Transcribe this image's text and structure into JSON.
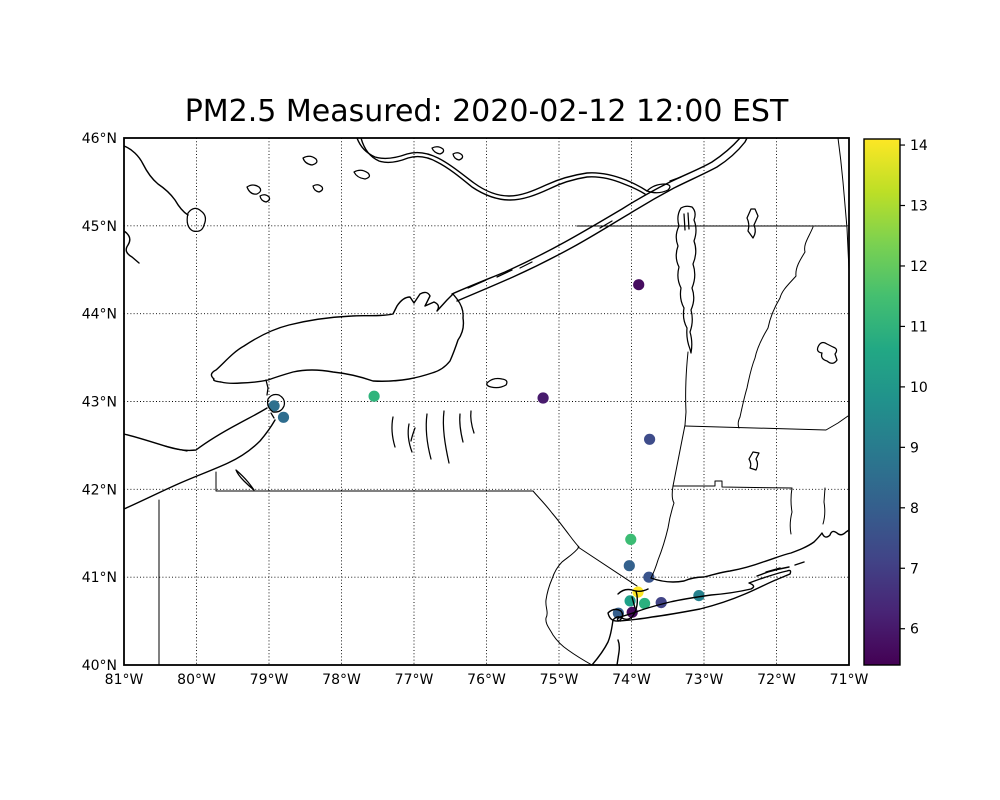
{
  "chart_data": {
    "type": "scatter",
    "subtype": "geographic-scatter-map",
    "title": "PM2.5 Measured: 2020-02-12 12:00 EST",
    "projection": "PlateCarree",
    "region": "New York State / Lake Ontario / New England",
    "grid": "dotted",
    "lon_range": [
      -81,
      -71
    ],
    "lat_range": [
      40,
      46
    ],
    "lon_ticks": [
      {
        "value": -81,
        "label": "81°W"
      },
      {
        "value": -80,
        "label": "80°W"
      },
      {
        "value": -79,
        "label": "79°W"
      },
      {
        "value": -78,
        "label": "78°W"
      },
      {
        "value": -77,
        "label": "77°W"
      },
      {
        "value": -76,
        "label": "76°W"
      },
      {
        "value": -75,
        "label": "75°W"
      },
      {
        "value": -74,
        "label": "74°W"
      },
      {
        "value": -73,
        "label": "73°W"
      },
      {
        "value": -72,
        "label": "72°W"
      },
      {
        "value": -71,
        "label": "71°W"
      }
    ],
    "lat_ticks": [
      {
        "value": 46,
        "label": "46°N"
      },
      {
        "value": 45,
        "label": "45°N"
      },
      {
        "value": 44,
        "label": "44°N"
      },
      {
        "value": 43,
        "label": "43°N"
      },
      {
        "value": 42,
        "label": "42°N"
      },
      {
        "value": 41,
        "label": "41°N"
      },
      {
        "value": 40,
        "label": "40°N"
      }
    ],
    "colorbar": {
      "colormap": "viridis",
      "vmin": 5.4,
      "vmax": 14.1,
      "ticks": [
        6,
        7,
        8,
        9,
        10,
        11,
        12,
        13,
        14
      ],
      "stops": [
        "#440154",
        "#482475",
        "#414487",
        "#355f8d",
        "#2a788e",
        "#21918c",
        "#22a884",
        "#44bf70",
        "#7ad151",
        "#bddf26",
        "#fde725"
      ]
    },
    "points": [
      {
        "lon": -73.9,
        "lat": 44.33,
        "value": 5.9,
        "color": "#470d60"
      },
      {
        "lon": -75.22,
        "lat": 43.04,
        "value": 6.4,
        "color": "#481b6d"
      },
      {
        "lon": -77.55,
        "lat": 43.06,
        "value": 11.3,
        "color": "#2fb47c"
      },
      {
        "lon": -78.93,
        "lat": 42.95,
        "value": 8.9,
        "color": "#2e708e"
      },
      {
        "lon": -78.8,
        "lat": 42.82,
        "value": 8.8,
        "color": "#2e6d8e"
      },
      {
        "lon": -73.75,
        "lat": 42.57,
        "value": 7.3,
        "color": "#3e4c8a"
      },
      {
        "lon": -74.01,
        "lat": 41.43,
        "value": 11.8,
        "color": "#3cbc74"
      },
      {
        "lon": -74.03,
        "lat": 41.13,
        "value": 8.3,
        "color": "#34618d"
      },
      {
        "lon": -73.76,
        "lat": 41.0,
        "value": 7.9,
        "color": "#3a548c"
      },
      {
        "lon": -73.91,
        "lat": 40.83,
        "value": 14.1,
        "color": "#fde725"
      },
      {
        "lon": -74.02,
        "lat": 40.73,
        "value": 10.6,
        "color": "#1fa188"
      },
      {
        "lon": -73.82,
        "lat": 40.7,
        "value": 11.2,
        "color": "#2ab07e"
      },
      {
        "lon": -73.59,
        "lat": 40.71,
        "value": 7.0,
        "color": "#424487"
      },
      {
        "lon": -73.99,
        "lat": 40.6,
        "value": 5.6,
        "color": "#450a5c"
      },
      {
        "lon": -74.18,
        "lat": 40.59,
        "value": 8.2,
        "color": "#355f8d"
      },
      {
        "lon": -73.07,
        "lat": 40.79,
        "value": 9.5,
        "color": "#26828e"
      }
    ]
  }
}
